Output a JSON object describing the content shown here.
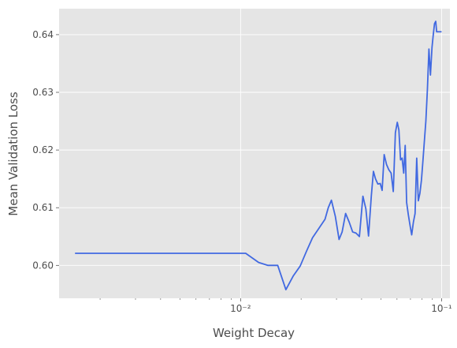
{
  "chart_data": {
    "type": "line",
    "title": "",
    "xlabel": "Weight Decay",
    "ylabel": "Mean Validation Loss",
    "xscale": "log",
    "xlim": [
      0.00125,
      0.11
    ],
    "ylim": [
      0.5943,
      0.6445
    ],
    "grid": true,
    "background": "#e5e5e5",
    "line_color": "#4169e1",
    "x_major_ticks": [
      0.01,
      0.1
    ],
    "x_tick_labels": [
      "10⁻²",
      "10⁻¹"
    ],
    "y_ticks": [
      0.6,
      0.61,
      0.62,
      0.63,
      0.64
    ],
    "y_tick_labels": [
      "0.60",
      "0.61",
      "0.62",
      "0.63",
      "0.64"
    ],
    "series": [
      {
        "x": [
          0.0015,
          0.0106,
          0.0123,
          0.0137,
          0.0153,
          0.0168,
          0.0183,
          0.0198,
          0.0213,
          0.0228,
          0.0245,
          0.0263,
          0.0273,
          0.0283,
          0.0296,
          0.0309,
          0.032,
          0.0333,
          0.0347,
          0.0361,
          0.0375,
          0.039,
          0.0406,
          0.042,
          0.0433,
          0.0447,
          0.0458,
          0.0469,
          0.0482,
          0.0495,
          0.0506,
          0.0518,
          0.0532,
          0.0546,
          0.0561,
          0.0575,
          0.0589,
          0.0602,
          0.0613,
          0.0625,
          0.0636,
          0.0648,
          0.0659,
          0.067,
          0.0683,
          0.0697,
          0.071,
          0.0724,
          0.0738,
          0.0752,
          0.0766,
          0.078,
          0.0794,
          0.0807,
          0.082,
          0.0835,
          0.085,
          0.0865,
          0.088,
          0.0896,
          0.0908,
          0.0922,
          0.0935,
          0.0945,
          0.0956,
          0.0966,
          0.0976,
          0.1
        ],
        "y": [
          0.6021,
          0.6021,
          0.6005,
          0.6,
          0.6,
          0.5958,
          0.5982,
          0.5999,
          0.6025,
          0.6048,
          0.6064,
          0.608,
          0.61,
          0.6113,
          0.6085,
          0.6045,
          0.6058,
          0.609,
          0.6075,
          0.6058,
          0.6056,
          0.605,
          0.612,
          0.6098,
          0.6051,
          0.612,
          0.6163,
          0.615,
          0.6141,
          0.6142,
          0.613,
          0.6192,
          0.6175,
          0.6166,
          0.616,
          0.6128,
          0.623,
          0.6248,
          0.6235,
          0.6183,
          0.6186,
          0.616,
          0.6208,
          0.6109,
          0.6088,
          0.6069,
          0.6053,
          0.6075,
          0.609,
          0.6186,
          0.6112,
          0.6125,
          0.6148,
          0.618,
          0.6213,
          0.625,
          0.6305,
          0.6375,
          0.633,
          0.6378,
          0.6398,
          0.6419,
          0.6423,
          0.6405,
          0.6405,
          0.6405,
          0.6405,
          0.6405
        ]
      }
    ]
  }
}
